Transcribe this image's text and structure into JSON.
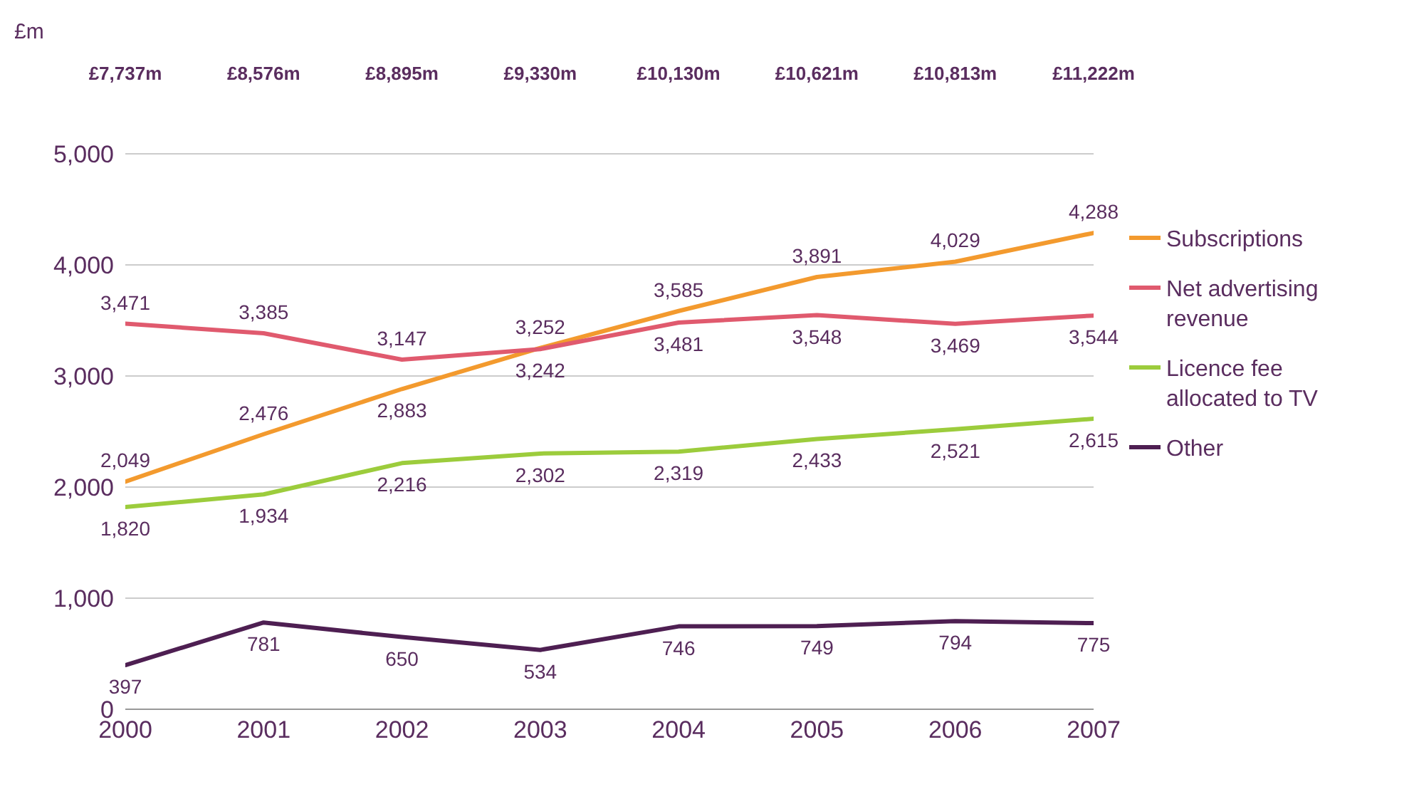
{
  "chart_data": {
    "type": "line",
    "ylabel": "£m",
    "x": [
      2000,
      2001,
      2002,
      2003,
      2004,
      2005,
      2006,
      2007
    ],
    "xlim": [
      2000,
      2007
    ],
    "xticks": [
      2000,
      2001,
      2002,
      2003,
      2004,
      2005,
      2006,
      2007
    ],
    "ylim": [
      0,
      5000
    ],
    "yticks": [
      0,
      {
        "value": 1000,
        "label": "1,000"
      },
      {
        "value": 2000,
        "label": "2,000"
      },
      {
        "value": 3000,
        "label": "3,000"
      },
      {
        "value": 4000,
        "label": "4,000"
      },
      {
        "value": 5000,
        "label": "5,000"
      }
    ],
    "grid": "y",
    "legend": "right",
    "marker": "none",
    "annotations": [
      "£7,737m",
      "£8,576m",
      "£8,895m",
      "£9,330m",
      "£10,130m",
      "£10,621m",
      "£10,813m",
      "£11,222m"
    ],
    "series": [
      {
        "name": "Subscriptions",
        "color": "#f39a2e",
        "values": [
          2049,
          2476,
          2883,
          3252,
          3585,
          3891,
          4029,
          4288
        ],
        "value_labels": [
          "2,049",
          "2,476",
          "2,883",
          "3,252",
          "3,585",
          "3,891",
          "4,029",
          "4,288"
        ]
      },
      {
        "name": "Net advertising revenue",
        "color": "#e05a6e",
        "values": [
          3471,
          3385,
          3147,
          3242,
          3481,
          3548,
          3469,
          3544
        ],
        "value_labels": [
          "3,471",
          "3,385",
          "3,147",
          "3,242",
          "3,481",
          "3,548",
          "3,469",
          "3,544"
        ]
      },
      {
        "name": "Licence fee allocated to TV",
        "color": "#9ccc3c",
        "values": [
          1820,
          1934,
          2216,
          2302,
          2319,
          2433,
          2521,
          2615
        ],
        "value_labels": [
          "1,820",
          "1,934",
          "2,216",
          "2,302",
          "2,319",
          "2,433",
          "2,521",
          "2,615"
        ]
      },
      {
        "name": "Other",
        "color": "#4e1f52",
        "values": [
          397,
          781,
          650,
          534,
          746,
          749,
          794,
          775
        ],
        "value_labels": [
          "397",
          "781",
          "650",
          "534",
          "746",
          "749",
          "794",
          "775"
        ]
      }
    ]
  }
}
